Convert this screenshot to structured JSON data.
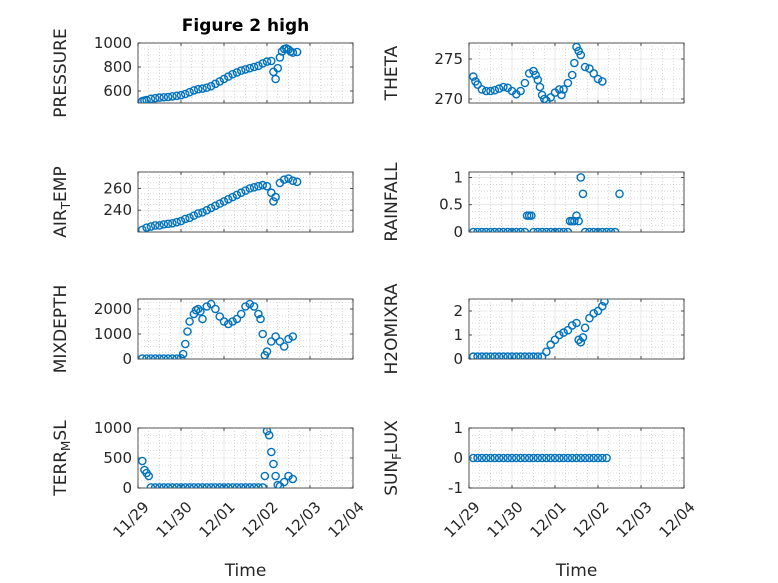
{
  "chart_data": [
    {
      "id": "pressure",
      "type": "scatter",
      "title": "Figure 2 high",
      "ylabel": {
        "main": "PRESSURE",
        "sub": ""
      },
      "xlim": [
        0,
        5
      ],
      "ylim": [
        500,
        1000
      ],
      "yticks": [
        600,
        800,
        1000
      ],
      "xticks": [],
      "xlabel": "",
      "color": "#0072BD",
      "points": [
        [
          0.1,
          515
        ],
        [
          0.15,
          520
        ],
        [
          0.2,
          525
        ],
        [
          0.3,
          535
        ],
        [
          0.4,
          540
        ],
        [
          0.5,
          545
        ],
        [
          0.6,
          548
        ],
        [
          0.7,
          550
        ],
        [
          0.8,
          555
        ],
        [
          0.9,
          560
        ],
        [
          1.0,
          565
        ],
        [
          1.1,
          575
        ],
        [
          1.2,
          590
        ],
        [
          1.3,
          605
        ],
        [
          1.4,
          615
        ],
        [
          1.5,
          620
        ],
        [
          1.6,
          628
        ],
        [
          1.7,
          640
        ],
        [
          1.8,
          660
        ],
        [
          1.9,
          680
        ],
        [
          2.0,
          700
        ],
        [
          2.1,
          720
        ],
        [
          2.2,
          740
        ],
        [
          2.3,
          755
        ],
        [
          2.4,
          770
        ],
        [
          2.5,
          780
        ],
        [
          2.6,
          790
        ],
        [
          2.7,
          800
        ],
        [
          2.8,
          810
        ],
        [
          2.9,
          830
        ],
        [
          3.0,
          845
        ],
        [
          3.1,
          850
        ],
        [
          3.15,
          760
        ],
        [
          3.2,
          700
        ],
        [
          3.25,
          790
        ],
        [
          3.3,
          880
        ],
        [
          3.35,
          930
        ],
        [
          3.4,
          950
        ],
        [
          3.45,
          955
        ],
        [
          3.5,
          945
        ],
        [
          3.55,
          930
        ],
        [
          3.6,
          920
        ],
        [
          3.7,
          925
        ]
      ]
    },
    {
      "id": "theta",
      "type": "scatter",
      "title": "",
      "ylabel": {
        "main": "THETA",
        "sub": ""
      },
      "xlim": [
        0,
        5
      ],
      "ylim": [
        269.5,
        277
      ],
      "yticks": [
        270,
        275
      ],
      "xticks": [],
      "xlabel": "",
      "color": "#0072BD",
      "points": [
        [
          0.1,
          272.8
        ],
        [
          0.15,
          272.2
        ],
        [
          0.2,
          271.8
        ],
        [
          0.3,
          271.2
        ],
        [
          0.4,
          271.0
        ],
        [
          0.5,
          271.0
        ],
        [
          0.6,
          271.1
        ],
        [
          0.7,
          271.3
        ],
        [
          0.8,
          271.5
        ],
        [
          0.9,
          271.4
        ],
        [
          1.0,
          271.0
        ],
        [
          1.1,
          270.6
        ],
        [
          1.2,
          271.0
        ],
        [
          1.3,
          272.0
        ],
        [
          1.4,
          273.2
        ],
        [
          1.5,
          273.5
        ],
        [
          1.55,
          273.0
        ],
        [
          1.6,
          272.4
        ],
        [
          1.65,
          271.5
        ],
        [
          1.7,
          270.5
        ],
        [
          1.75,
          270.0
        ],
        [
          1.8,
          269.8
        ],
        [
          1.9,
          270.2
        ],
        [
          2.0,
          270.8
        ],
        [
          2.1,
          271.2
        ],
        [
          2.15,
          270.5
        ],
        [
          2.2,
          271.2
        ],
        [
          2.3,
          272.0
        ],
        [
          2.4,
          273.0
        ],
        [
          2.45,
          274.5
        ],
        [
          2.5,
          276.5
        ],
        [
          2.55,
          276.0
        ],
        [
          2.6,
          275.5
        ],
        [
          2.7,
          274.0
        ],
        [
          2.8,
          273.8
        ],
        [
          2.9,
          273.2
        ],
        [
          3.0,
          272.5
        ],
        [
          3.1,
          272.2
        ]
      ]
    },
    {
      "id": "air-temp",
      "type": "scatter",
      "title": "",
      "ylabel": {
        "main": "AIR",
        "sub": "T",
        "tail": "EMP"
      },
      "xlim": [
        0,
        5
      ],
      "ylim": [
        220,
        275
      ],
      "yticks": [
        240,
        260
      ],
      "xticks": [],
      "xlabel": "",
      "color": "#0072BD",
      "points": [
        [
          0.1,
          222
        ],
        [
          0.2,
          224
        ],
        [
          0.3,
          225
        ],
        [
          0.4,
          226
        ],
        [
          0.5,
          226
        ],
        [
          0.6,
          227
        ],
        [
          0.7,
          227.5
        ],
        [
          0.8,
          228
        ],
        [
          0.9,
          229
        ],
        [
          1.0,
          230
        ],
        [
          1.1,
          232
        ],
        [
          1.2,
          233
        ],
        [
          1.3,
          235
        ],
        [
          1.4,
          237
        ],
        [
          1.5,
          238
        ],
        [
          1.6,
          240
        ],
        [
          1.7,
          242
        ],
        [
          1.8,
          244
        ],
        [
          1.9,
          246
        ],
        [
          2.0,
          248
        ],
        [
          2.1,
          250
        ],
        [
          2.2,
          252
        ],
        [
          2.3,
          254
        ],
        [
          2.4,
          256
        ],
        [
          2.5,
          258
        ],
        [
          2.6,
          260
        ],
        [
          2.7,
          261
        ],
        [
          2.8,
          262
        ],
        [
          2.9,
          263
        ],
        [
          3.0,
          262
        ],
        [
          3.1,
          256
        ],
        [
          3.15,
          248
        ],
        [
          3.2,
          252
        ],
        [
          3.3,
          265
        ],
        [
          3.4,
          268
        ],
        [
          3.5,
          269
        ],
        [
          3.6,
          267
        ],
        [
          3.7,
          266
        ]
      ]
    },
    {
      "id": "rainfall",
      "type": "scatter",
      "title": "",
      "ylabel": {
        "main": "RAINFALL",
        "sub": ""
      },
      "xlim": [
        0,
        5
      ],
      "ylim": [
        0,
        1.1
      ],
      "yticks": [
        0,
        0.5,
        1
      ],
      "xticks": [],
      "xlabel": "",
      "color": "#0072BD",
      "points": [
        [
          0.1,
          0
        ],
        [
          0.2,
          0
        ],
        [
          0.3,
          0
        ],
        [
          0.4,
          0
        ],
        [
          0.5,
          0
        ],
        [
          0.6,
          0
        ],
        [
          0.7,
          0
        ],
        [
          0.8,
          0
        ],
        [
          0.9,
          0
        ],
        [
          1.0,
          0
        ],
        [
          1.1,
          0
        ],
        [
          1.2,
          0
        ],
        [
          1.3,
          0
        ],
        [
          1.35,
          0.3
        ],
        [
          1.4,
          0.3
        ],
        [
          1.45,
          0.3
        ],
        [
          1.5,
          0
        ],
        [
          1.6,
          0
        ],
        [
          1.7,
          0
        ],
        [
          1.8,
          0
        ],
        [
          1.9,
          0
        ],
        [
          2.0,
          0
        ],
        [
          2.1,
          0
        ],
        [
          2.2,
          0
        ],
        [
          2.3,
          0
        ],
        [
          2.35,
          0.2
        ],
        [
          2.4,
          0.2
        ],
        [
          2.45,
          0.2
        ],
        [
          2.5,
          0.3
        ],
        [
          2.55,
          0.2
        ],
        [
          2.6,
          1.0
        ],
        [
          2.65,
          0.7
        ],
        [
          2.7,
          0
        ],
        [
          2.8,
          0
        ],
        [
          2.9,
          0
        ],
        [
          3.0,
          0
        ],
        [
          3.1,
          0
        ],
        [
          3.2,
          0
        ],
        [
          3.3,
          0
        ],
        [
          3.4,
          0
        ],
        [
          3.5,
          0.7
        ]
      ]
    },
    {
      "id": "mixdepth",
      "type": "scatter",
      "title": "",
      "ylabel": {
        "main": "MIXDEPTH",
        "sub": ""
      },
      "xlim": [
        0,
        5
      ],
      "ylim": [
        0,
        2400
      ],
      "yticks": [
        0,
        1000,
        2000
      ],
      "xticks": [],
      "xlabel": "",
      "color": "#0072BD",
      "points": [
        [
          0.1,
          20
        ],
        [
          0.2,
          20
        ],
        [
          0.3,
          20
        ],
        [
          0.4,
          20
        ],
        [
          0.5,
          20
        ],
        [
          0.6,
          20
        ],
        [
          0.7,
          20
        ],
        [
          0.8,
          20
        ],
        [
          0.9,
          20
        ],
        [
          1.0,
          30
        ],
        [
          1.05,
          200
        ],
        [
          1.1,
          600
        ],
        [
          1.15,
          1100
        ],
        [
          1.2,
          1500
        ],
        [
          1.3,
          1800
        ],
        [
          1.35,
          1950
        ],
        [
          1.4,
          2000
        ],
        [
          1.45,
          1900
        ],
        [
          1.5,
          1600
        ],
        [
          1.6,
          2100
        ],
        [
          1.7,
          2200
        ],
        [
          1.8,
          2000
        ],
        [
          1.9,
          1700
        ],
        [
          2.0,
          1500
        ],
        [
          2.1,
          1400
        ],
        [
          2.2,
          1500
        ],
        [
          2.3,
          1600
        ],
        [
          2.4,
          1800
        ],
        [
          2.5,
          2100
        ],
        [
          2.6,
          2200
        ],
        [
          2.7,
          2100
        ],
        [
          2.8,
          1800
        ],
        [
          2.85,
          1600
        ],
        [
          2.9,
          1000
        ],
        [
          2.95,
          150
        ],
        [
          3.0,
          300
        ],
        [
          3.1,
          700
        ],
        [
          3.2,
          900
        ],
        [
          3.3,
          700
        ],
        [
          3.4,
          500
        ],
        [
          3.5,
          800
        ],
        [
          3.6,
          900
        ]
      ]
    },
    {
      "id": "h2omixra",
      "type": "scatter",
      "title": "",
      "ylabel": {
        "main": "H2OMIXRA",
        "sub": ""
      },
      "xlim": [
        0,
        5
      ],
      "ylim": [
        0,
        2.5
      ],
      "yticks": [
        0,
        1,
        2
      ],
      "xticks": [],
      "xlabel": "",
      "color": "#0072BD",
      "points": [
        [
          0.1,
          0.1
        ],
        [
          0.2,
          0.1
        ],
        [
          0.3,
          0.1
        ],
        [
          0.4,
          0.1
        ],
        [
          0.5,
          0.1
        ],
        [
          0.6,
          0.1
        ],
        [
          0.7,
          0.1
        ],
        [
          0.8,
          0.1
        ],
        [
          0.9,
          0.1
        ],
        [
          1.0,
          0.1
        ],
        [
          1.1,
          0.1
        ],
        [
          1.2,
          0.1
        ],
        [
          1.3,
          0.1
        ],
        [
          1.4,
          0.1
        ],
        [
          1.5,
          0.1
        ],
        [
          1.6,
          0.1
        ],
        [
          1.7,
          0.1
        ],
        [
          1.8,
          0.3
        ],
        [
          1.9,
          0.6
        ],
        [
          2.0,
          0.8
        ],
        [
          2.1,
          1.0
        ],
        [
          2.2,
          1.1
        ],
        [
          2.3,
          1.2
        ],
        [
          2.4,
          1.4
        ],
        [
          2.5,
          1.5
        ],
        [
          2.55,
          0.8
        ],
        [
          2.6,
          0.7
        ],
        [
          2.65,
          0.9
        ],
        [
          2.7,
          1.3
        ],
        [
          2.8,
          1.7
        ],
        [
          2.9,
          1.9
        ],
        [
          3.0,
          2.0
        ],
        [
          3.1,
          2.2
        ],
        [
          3.15,
          2.4
        ]
      ]
    },
    {
      "id": "terr-msl",
      "type": "scatter",
      "title": "",
      "ylabel": {
        "main": "TERR",
        "sub": "M",
        "tail": "SL"
      },
      "xlim": [
        0,
        5
      ],
      "ylim": [
        0,
        1000
      ],
      "yticks": [
        0,
        500,
        1000
      ],
      "xticks": [
        "11/29",
        "11/30",
        "12/01",
        "12/02",
        "12/03",
        "12/04"
      ],
      "xlabel": "Time",
      "color": "#0072BD",
      "points": [
        [
          0.1,
          450
        ],
        [
          0.15,
          300
        ],
        [
          0.2,
          250
        ],
        [
          0.25,
          200
        ],
        [
          0.3,
          10
        ],
        [
          0.4,
          10
        ],
        [
          0.5,
          10
        ],
        [
          0.6,
          10
        ],
        [
          0.7,
          10
        ],
        [
          0.8,
          10
        ],
        [
          0.9,
          10
        ],
        [
          1.0,
          10
        ],
        [
          1.1,
          10
        ],
        [
          1.2,
          10
        ],
        [
          1.3,
          10
        ],
        [
          1.4,
          10
        ],
        [
          1.5,
          10
        ],
        [
          1.6,
          10
        ],
        [
          1.7,
          10
        ],
        [
          1.8,
          10
        ],
        [
          1.9,
          10
        ],
        [
          2.0,
          10
        ],
        [
          2.1,
          10
        ],
        [
          2.2,
          10
        ],
        [
          2.3,
          10
        ],
        [
          2.4,
          10
        ],
        [
          2.5,
          10
        ],
        [
          2.6,
          10
        ],
        [
          2.7,
          10
        ],
        [
          2.8,
          10
        ],
        [
          2.9,
          10
        ],
        [
          2.95,
          200
        ],
        [
          3.0,
          950
        ],
        [
          3.05,
          880
        ],
        [
          3.1,
          600
        ],
        [
          3.15,
          400
        ],
        [
          3.2,
          200
        ],
        [
          3.25,
          50
        ],
        [
          3.3,
          30
        ],
        [
          3.4,
          100
        ],
        [
          3.5,
          200
        ],
        [
          3.6,
          150
        ]
      ]
    },
    {
      "id": "sun-flux",
      "type": "scatter",
      "title": "",
      "ylabel": {
        "main": "SUN",
        "sub": "F",
        "tail": "LUX"
      },
      "xlim": [
        0,
        5
      ],
      "ylim": [
        -1,
        1
      ],
      "yticks": [
        -1,
        0,
        1
      ],
      "xticks": [
        "11/29",
        "11/30",
        "12/01",
        "12/02",
        "12/03",
        "12/04"
      ],
      "xlabel": "Time",
      "color": "#0072BD",
      "points": [
        [
          0.1,
          0
        ],
        [
          0.2,
          0
        ],
        [
          0.3,
          0
        ],
        [
          0.4,
          0
        ],
        [
          0.5,
          0
        ],
        [
          0.6,
          0
        ],
        [
          0.7,
          0
        ],
        [
          0.8,
          0
        ],
        [
          0.9,
          0
        ],
        [
          1.0,
          0
        ],
        [
          1.1,
          0
        ],
        [
          1.2,
          0
        ],
        [
          1.3,
          0
        ],
        [
          1.4,
          0
        ],
        [
          1.5,
          0
        ],
        [
          1.6,
          0
        ],
        [
          1.7,
          0
        ],
        [
          1.8,
          0
        ],
        [
          1.9,
          0
        ],
        [
          2.0,
          0
        ],
        [
          2.1,
          0
        ],
        [
          2.2,
          0
        ],
        [
          2.3,
          0
        ],
        [
          2.4,
          0
        ],
        [
          2.5,
          0
        ],
        [
          2.6,
          0
        ],
        [
          2.7,
          0
        ],
        [
          2.8,
          0
        ],
        [
          2.9,
          0
        ],
        [
          3.0,
          0
        ],
        [
          3.1,
          0
        ],
        [
          3.2,
          0
        ]
      ]
    }
  ]
}
